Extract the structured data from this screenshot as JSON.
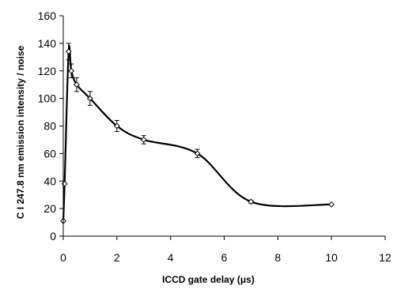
{
  "chart_data": {
    "type": "scatter",
    "title": "",
    "xlabel": "ICCD gate delay (μs)",
    "ylabel": "C I 247.8 nm emission intensity / noise",
    "xlim": [
      0,
      12
    ],
    "ylim": [
      0,
      160
    ],
    "xticks": [
      0,
      2,
      4,
      6,
      8,
      10,
      12
    ],
    "yticks": [
      0,
      20,
      40,
      60,
      80,
      100,
      120,
      140,
      160
    ],
    "xtick_labels": [
      "0",
      "2",
      "4",
      "6",
      "8",
      "10",
      "12"
    ],
    "ytick_labels": [
      "0",
      "20",
      "40",
      "60",
      "80",
      "100",
      "120",
      "140",
      "160"
    ],
    "grid": false,
    "legend": "none",
    "line": "smooth",
    "marker": "diamond-open",
    "colors": {
      "line": "#000000",
      "marker_fill": "#ffffff",
      "marker_stroke": "#000000",
      "axis": "#000000"
    },
    "series": [
      {
        "x": [
          0.0,
          0.05,
          0.2,
          0.3,
          0.5,
          1.0,
          2.0,
          3.0,
          5.0,
          7.0,
          10.0
        ],
        "y": [
          11,
          38,
          134,
          120,
          110,
          100,
          80,
          70,
          60,
          25,
          23
        ],
        "yerr": [
          0,
          0,
          6,
          5,
          5,
          5,
          4,
          3,
          3,
          1,
          0
        ]
      }
    ]
  }
}
